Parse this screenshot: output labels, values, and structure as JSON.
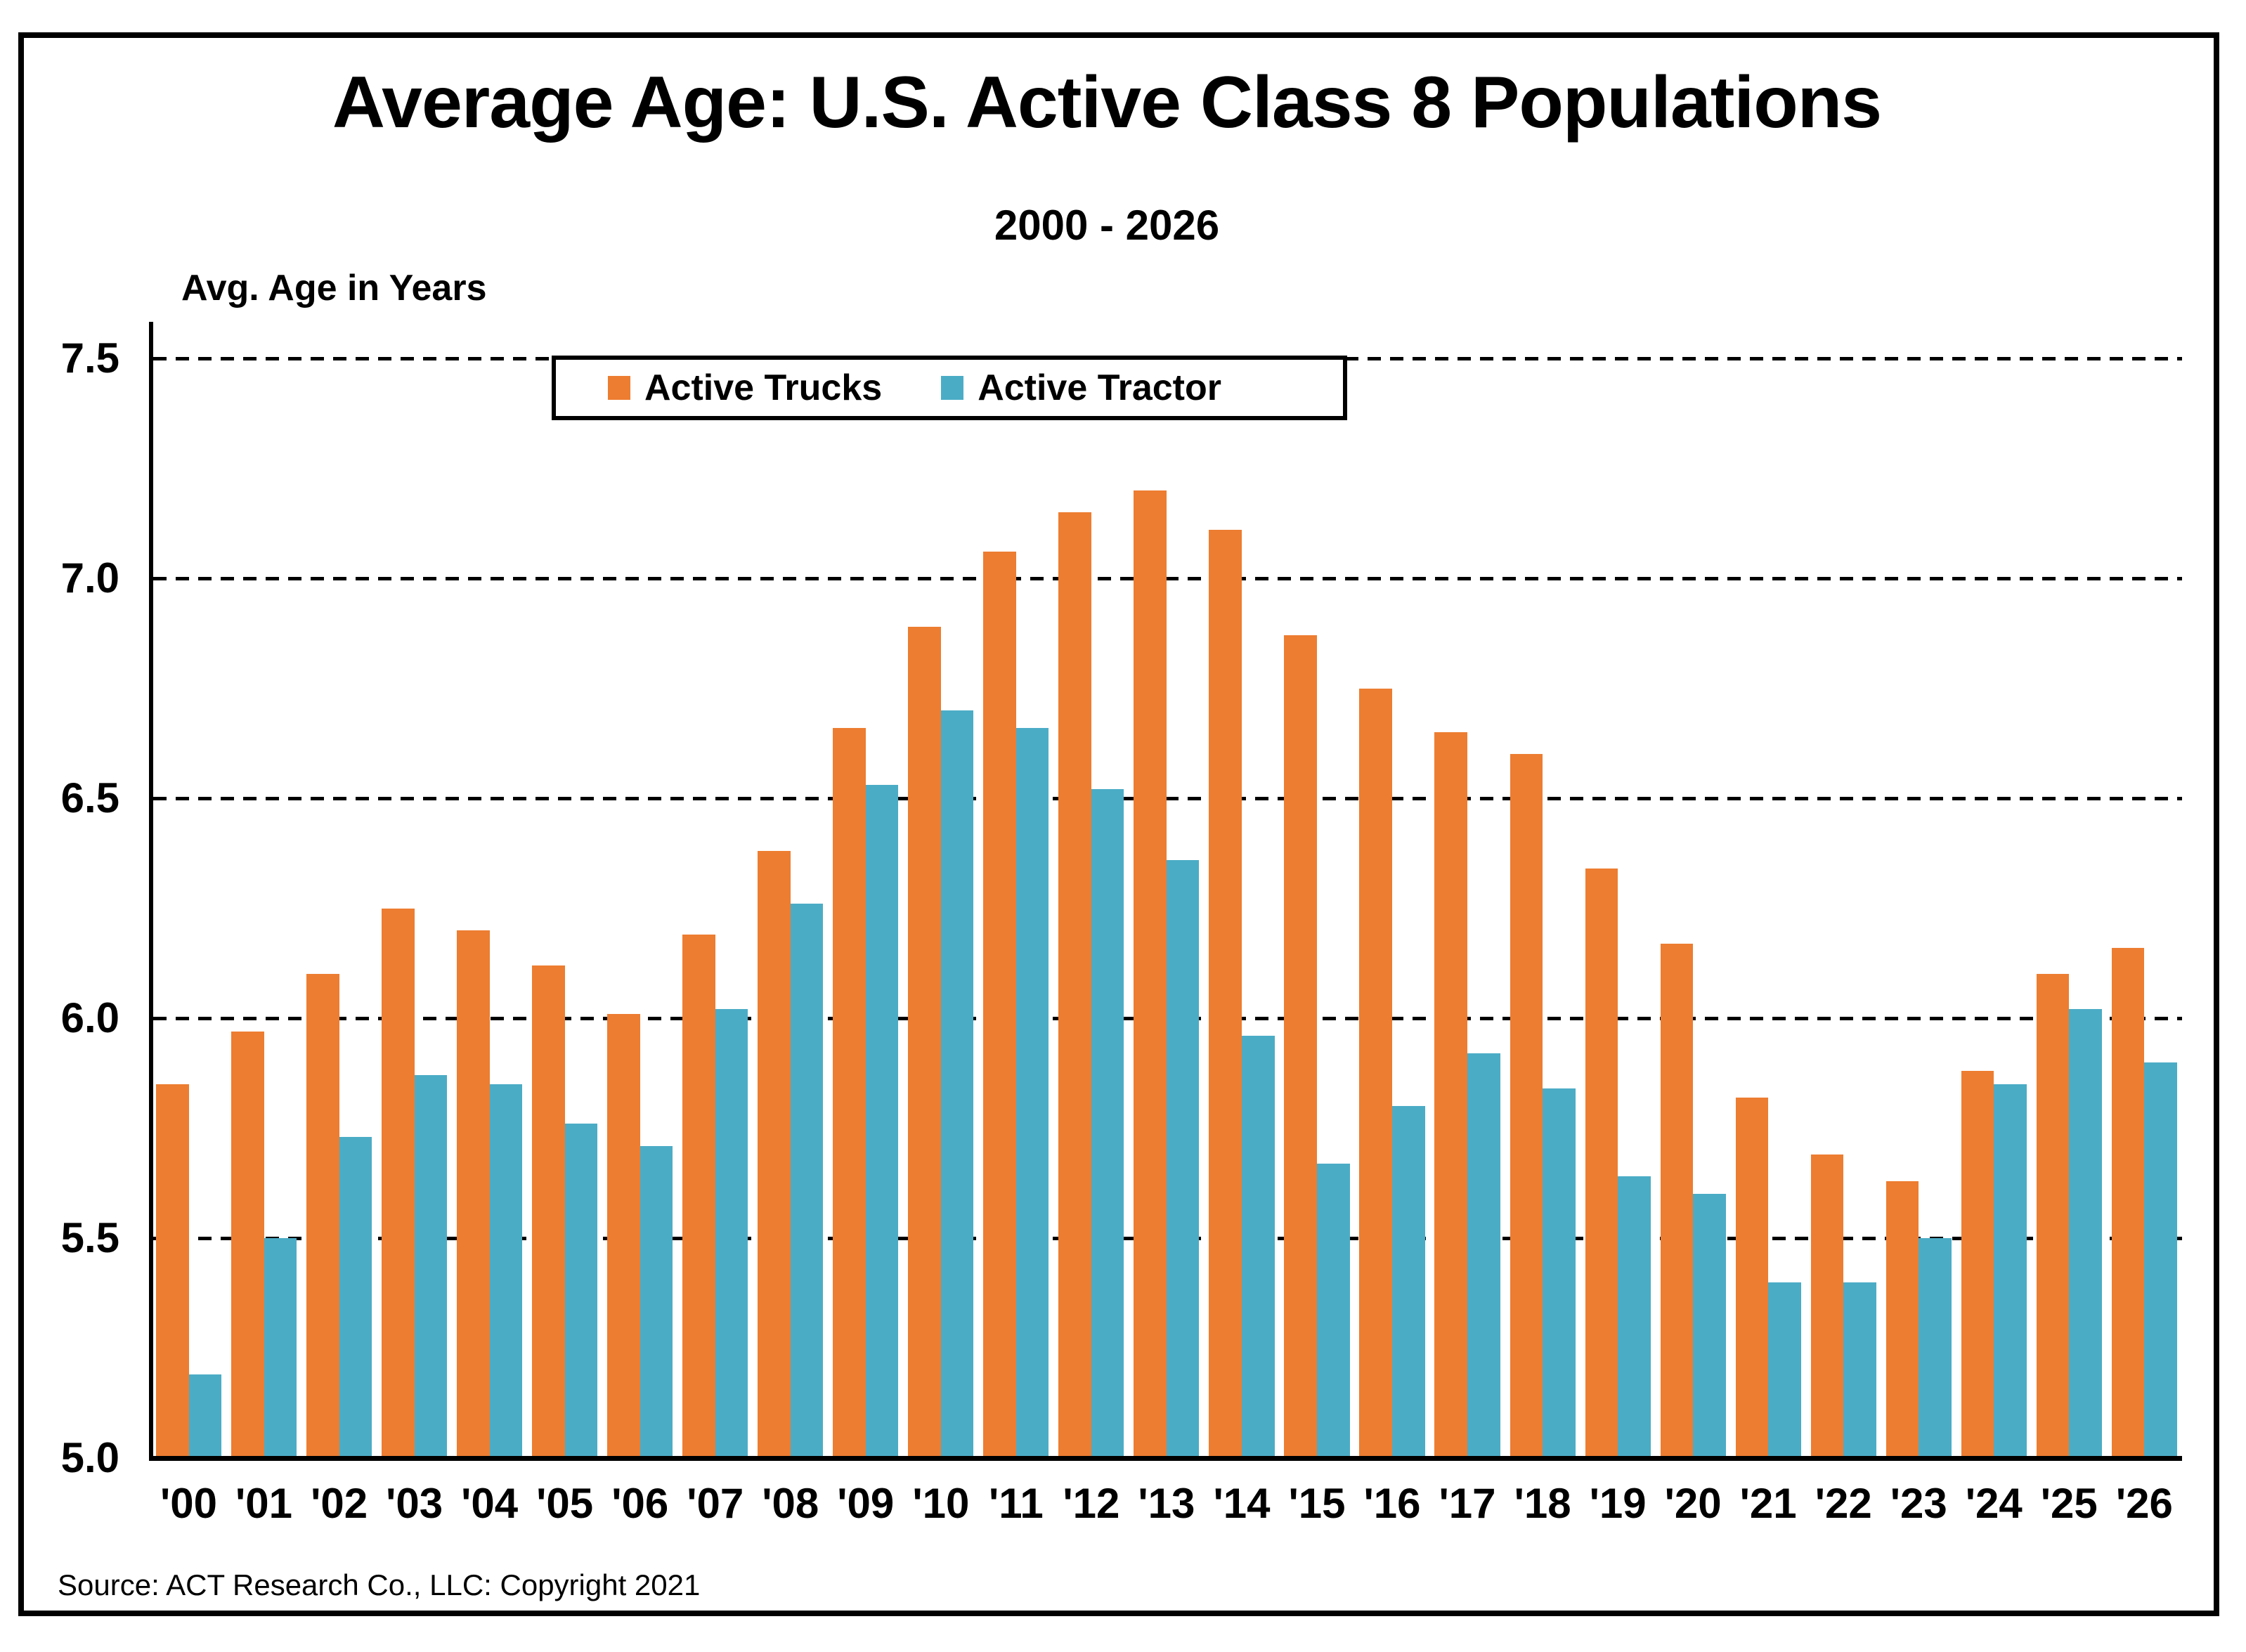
{
  "title": "Average Age: U.S. Active Class 8 Populations",
  "subtitle": "2000 - 2026",
  "y_axis_title": "Avg. Age in Years",
  "source": "Source: ACT Research Co., LLC: Copyright 2021",
  "legend": {
    "entries": [
      {
        "label": "Active Trucks",
        "color": "#ED7D31"
      },
      {
        "label": "Active Tractor",
        "color": "#4BACC6"
      }
    ]
  },
  "chart_data": {
    "type": "bar",
    "title": "Average Age: U.S. Active Class 8 Populations",
    "subtitle": "2000 - 2026",
    "xlabel": "",
    "ylabel": "Avg. Age in Years",
    "ylim": [
      5.0,
      7.5
    ],
    "yticks": [
      "5.0",
      "5.5",
      "6.0",
      "6.5",
      "7.0",
      "7.5"
    ],
    "grid": "horizontal-dashed",
    "legend_position": "top-center-inside",
    "categories": [
      "'00",
      "'01",
      "'02",
      "'03",
      "'04",
      "'05",
      "'06",
      "'07",
      "'08",
      "'09",
      "'10",
      "'11",
      "'12",
      "'13",
      "'14",
      "'15",
      "'16",
      "'17",
      "'18",
      "'19",
      "'20",
      "'21",
      "'22",
      "'23",
      "'24",
      "'25",
      "'26"
    ],
    "series": [
      {
        "name": "Active Trucks",
        "color": "#ED7D31",
        "values": [
          5.85,
          5.97,
          6.1,
          6.25,
          6.2,
          6.12,
          6.01,
          6.19,
          6.38,
          6.66,
          6.89,
          7.06,
          7.15,
          7.2,
          7.11,
          6.87,
          6.75,
          6.65,
          6.6,
          6.34,
          6.17,
          5.82,
          5.69,
          5.63,
          5.88,
          6.1,
          6.16
        ]
      },
      {
        "name": "Active Tractor",
        "color": "#4BACC6",
        "values": [
          5.19,
          5.5,
          5.73,
          5.87,
          5.85,
          5.76,
          5.71,
          6.02,
          6.26,
          6.53,
          6.7,
          6.66,
          6.52,
          6.36,
          5.96,
          5.67,
          5.8,
          5.92,
          5.84,
          5.64,
          5.6,
          5.4,
          5.4,
          5.5,
          5.85,
          6.02,
          5.9
        ]
      }
    ]
  }
}
